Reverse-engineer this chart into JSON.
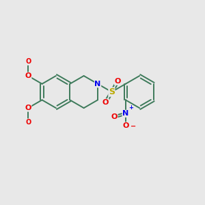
{
  "bg_color": "#e8e8e8",
  "bond_color": "#3d7a5a",
  "bond_width": 1.4,
  "N_color": "#0000ee",
  "O_color": "#ee0000",
  "S_color": "#bbaa00",
  "C_color": "#3d7a5a",
  "L": 0.38,
  "xlim": [
    -0.3,
    4.5
  ],
  "ylim": [
    0.2,
    3.6
  ],
  "figsize": [
    3.0,
    3.0
  ],
  "dpi": 100
}
